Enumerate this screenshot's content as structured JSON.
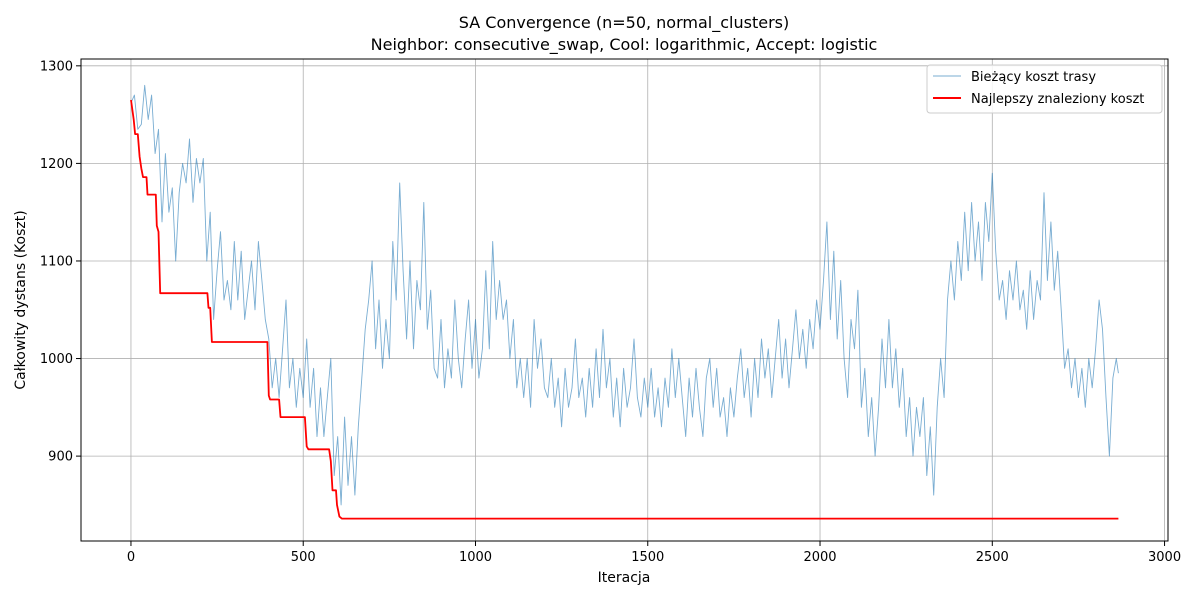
{
  "chart_data": {
    "type": "line",
    "title": "SA Convergence (n=50, normal_clusters)",
    "subtitle": "Neighbor: consecutive_swap, Cool: logarithmic, Accept: logistic",
    "xlabel": "Iteracja",
    "ylabel": "Całkowity dystans (Koszt)",
    "xlim": [
      -145,
      3010
    ],
    "ylim": [
      813,
      1307
    ],
    "xticks": [
      0,
      500,
      1000,
      1500,
      2000,
      2500,
      3000
    ],
    "yticks": [
      900,
      1000,
      1100,
      1200,
      1300
    ],
    "grid": true,
    "legend_position": "top-right",
    "series": [
      {
        "name": "Bieżący koszt trasy",
        "color": "#1f77b4",
        "style": "thin",
        "points": [
          [
            0,
            1262
          ],
          [
            10,
            1270
          ],
          [
            20,
            1235
          ],
          [
            30,
            1240
          ],
          [
            40,
            1280
          ],
          [
            50,
            1245
          ],
          [
            60,
            1270
          ],
          [
            70,
            1210
          ],
          [
            80,
            1235
          ],
          [
            90,
            1140
          ],
          [
            100,
            1210
          ],
          [
            110,
            1150
          ],
          [
            120,
            1175
          ],
          [
            130,
            1100
          ],
          [
            140,
            1170
          ],
          [
            150,
            1200
          ],
          [
            160,
            1180
          ],
          [
            170,
            1225
          ],
          [
            180,
            1160
          ],
          [
            190,
            1205
          ],
          [
            200,
            1180
          ],
          [
            210,
            1205
          ],
          [
            220,
            1100
          ],
          [
            230,
            1150
          ],
          [
            240,
            1040
          ],
          [
            250,
            1090
          ],
          [
            260,
            1130
          ],
          [
            270,
            1060
          ],
          [
            280,
            1080
          ],
          [
            290,
            1050
          ],
          [
            300,
            1120
          ],
          [
            310,
            1060
          ],
          [
            320,
            1110
          ],
          [
            330,
            1040
          ],
          [
            340,
            1070
          ],
          [
            350,
            1100
          ],
          [
            360,
            1050
          ],
          [
            370,
            1120
          ],
          [
            380,
            1080
          ],
          [
            390,
            1040
          ],
          [
            400,
            1020
          ],
          [
            410,
            970
          ],
          [
            420,
            1000
          ],
          [
            430,
            960
          ],
          [
            440,
            1010
          ],
          [
            450,
            1060
          ],
          [
            460,
            970
          ],
          [
            470,
            1000
          ],
          [
            480,
            950
          ],
          [
            490,
            990
          ],
          [
            500,
            960
          ],
          [
            510,
            1020
          ],
          [
            520,
            950
          ],
          [
            530,
            990
          ],
          [
            540,
            920
          ],
          [
            550,
            970
          ],
          [
            560,
            920
          ],
          [
            570,
            960
          ],
          [
            580,
            1000
          ],
          [
            590,
            880
          ],
          [
            600,
            920
          ],
          [
            610,
            850
          ],
          [
            620,
            940
          ],
          [
            630,
            870
          ],
          [
            640,
            920
          ],
          [
            650,
            860
          ],
          [
            660,
            930
          ],
          [
            670,
            980
          ],
          [
            680,
            1030
          ],
          [
            690,
            1060
          ],
          [
            700,
            1100
          ],
          [
            710,
            1010
          ],
          [
            720,
            1060
          ],
          [
            730,
            990
          ],
          [
            740,
            1040
          ],
          [
            750,
            1000
          ],
          [
            760,
            1120
          ],
          [
            770,
            1060
          ],
          [
            780,
            1180
          ],
          [
            790,
            1090
          ],
          [
            800,
            1020
          ],
          [
            810,
            1100
          ],
          [
            820,
            1010
          ],
          [
            830,
            1080
          ],
          [
            840,
            1050
          ],
          [
            850,
            1160
          ],
          [
            860,
            1030
          ],
          [
            870,
            1070
          ],
          [
            880,
            990
          ],
          [
            890,
            980
          ],
          [
            900,
            1040
          ],
          [
            910,
            970
          ],
          [
            920,
            1010
          ],
          [
            930,
            980
          ],
          [
            940,
            1060
          ],
          [
            950,
            1000
          ],
          [
            960,
            970
          ],
          [
            970,
            1020
          ],
          [
            980,
            1060
          ],
          [
            990,
            990
          ],
          [
            1000,
            1040
          ],
          [
            1010,
            980
          ],
          [
            1020,
            1010
          ],
          [
            1030,
            1090
          ],
          [
            1040,
            1010
          ],
          [
            1050,
            1120
          ],
          [
            1060,
            1040
          ],
          [
            1070,
            1080
          ],
          [
            1080,
            1040
          ],
          [
            1090,
            1060
          ],
          [
            1100,
            1000
          ],
          [
            1110,
            1040
          ],
          [
            1120,
            970
          ],
          [
            1130,
            1000
          ],
          [
            1140,
            960
          ],
          [
            1150,
            1000
          ],
          [
            1160,
            950
          ],
          [
            1170,
            1040
          ],
          [
            1180,
            990
          ],
          [
            1190,
            1020
          ],
          [
            1200,
            970
          ],
          [
            1210,
            960
          ],
          [
            1220,
            1000
          ],
          [
            1230,
            950
          ],
          [
            1240,
            980
          ],
          [
            1250,
            930
          ],
          [
            1260,
            990
          ],
          [
            1270,
            950
          ],
          [
            1280,
            970
          ],
          [
            1290,
            1020
          ],
          [
            1300,
            960
          ],
          [
            1310,
            980
          ],
          [
            1320,
            940
          ],
          [
            1330,
            990
          ],
          [
            1340,
            950
          ],
          [
            1350,
            1010
          ],
          [
            1360,
            960
          ],
          [
            1370,
            1030
          ],
          [
            1380,
            970
          ],
          [
            1390,
            1000
          ],
          [
            1400,
            940
          ],
          [
            1410,
            980
          ],
          [
            1420,
            930
          ],
          [
            1430,
            990
          ],
          [
            1440,
            950
          ],
          [
            1450,
            970
          ],
          [
            1460,
            1020
          ],
          [
            1470,
            960
          ],
          [
            1480,
            940
          ],
          [
            1490,
            980
          ],
          [
            1500,
            950
          ],
          [
            1510,
            990
          ],
          [
            1520,
            940
          ],
          [
            1530,
            970
          ],
          [
            1540,
            930
          ],
          [
            1550,
            980
          ],
          [
            1560,
            950
          ],
          [
            1570,
            1010
          ],
          [
            1580,
            960
          ],
          [
            1590,
            1000
          ],
          [
            1600,
            960
          ],
          [
            1610,
            920
          ],
          [
            1620,
            980
          ],
          [
            1630,
            940
          ],
          [
            1640,
            990
          ],
          [
            1650,
            950
          ],
          [
            1660,
            920
          ],
          [
            1670,
            980
          ],
          [
            1680,
            1000
          ],
          [
            1690,
            950
          ],
          [
            1700,
            990
          ],
          [
            1710,
            940
          ],
          [
            1720,
            960
          ],
          [
            1730,
            920
          ],
          [
            1740,
            970
          ],
          [
            1750,
            940
          ],
          [
            1760,
            980
          ],
          [
            1770,
            1010
          ],
          [
            1780,
            960
          ],
          [
            1790,
            990
          ],
          [
            1800,
            940
          ],
          [
            1810,
            1000
          ],
          [
            1820,
            960
          ],
          [
            1830,
            1020
          ],
          [
            1840,
            980
          ],
          [
            1850,
            1010
          ],
          [
            1860,
            960
          ],
          [
            1870,
            1000
          ],
          [
            1880,
            1040
          ],
          [
            1890,
            980
          ],
          [
            1900,
            1020
          ],
          [
            1910,
            970
          ],
          [
            1920,
            1010
          ],
          [
            1930,
            1050
          ],
          [
            1940,
            1000
          ],
          [
            1950,
            1030
          ],
          [
            1960,
            990
          ],
          [
            1970,
            1040
          ],
          [
            1980,
            1010
          ],
          [
            1990,
            1060
          ],
          [
            2000,
            1030
          ],
          [
            2010,
            1080
          ],
          [
            2020,
            1140
          ],
          [
            2030,
            1040
          ],
          [
            2040,
            1110
          ],
          [
            2050,
            1020
          ],
          [
            2060,
            1080
          ],
          [
            2070,
            1000
          ],
          [
            2080,
            960
          ],
          [
            2090,
            1040
          ],
          [
            2100,
            1010
          ],
          [
            2110,
            1070
          ],
          [
            2120,
            950
          ],
          [
            2130,
            990
          ],
          [
            2140,
            920
          ],
          [
            2150,
            960
          ],
          [
            2160,
            900
          ],
          [
            2170,
            950
          ],
          [
            2180,
            1020
          ],
          [
            2190,
            970
          ],
          [
            2200,
            1040
          ],
          [
            2210,
            970
          ],
          [
            2220,
            1010
          ],
          [
            2230,
            950
          ],
          [
            2240,
            990
          ],
          [
            2250,
            920
          ],
          [
            2260,
            960
          ],
          [
            2270,
            900
          ],
          [
            2280,
            950
          ],
          [
            2290,
            920
          ],
          [
            2300,
            960
          ],
          [
            2310,
            880
          ],
          [
            2320,
            930
          ],
          [
            2330,
            860
          ],
          [
            2340,
            950
          ],
          [
            2350,
            1000
          ],
          [
            2360,
            960
          ],
          [
            2370,
            1060
          ],
          [
            2380,
            1100
          ],
          [
            2390,
            1060
          ],
          [
            2400,
            1120
          ],
          [
            2410,
            1080
          ],
          [
            2420,
            1150
          ],
          [
            2430,
            1090
          ],
          [
            2440,
            1160
          ],
          [
            2450,
            1100
          ],
          [
            2460,
            1140
          ],
          [
            2470,
            1080
          ],
          [
            2480,
            1160
          ],
          [
            2490,
            1120
          ],
          [
            2500,
            1190
          ],
          [
            2510,
            1110
          ],
          [
            2520,
            1060
          ],
          [
            2530,
            1080
          ],
          [
            2540,
            1040
          ],
          [
            2550,
            1090
          ],
          [
            2560,
            1060
          ],
          [
            2570,
            1100
          ],
          [
            2580,
            1050
          ],
          [
            2590,
            1070
          ],
          [
            2600,
            1030
          ],
          [
            2610,
            1090
          ],
          [
            2620,
            1040
          ],
          [
            2630,
            1080
          ],
          [
            2640,
            1060
          ],
          [
            2650,
            1170
          ],
          [
            2660,
            1080
          ],
          [
            2670,
            1140
          ],
          [
            2680,
            1070
          ],
          [
            2690,
            1110
          ],
          [
            2700,
            1050
          ],
          [
            2710,
            990
          ],
          [
            2720,
            1010
          ],
          [
            2730,
            970
          ],
          [
            2740,
            1000
          ],
          [
            2750,
            960
          ],
          [
            2760,
            990
          ],
          [
            2770,
            950
          ],
          [
            2780,
            1000
          ],
          [
            2790,
            970
          ],
          [
            2800,
            1010
          ],
          [
            2810,
            1060
          ],
          [
            2820,
            1030
          ],
          [
            2830,
            960
          ],
          [
            2840,
            900
          ],
          [
            2850,
            980
          ],
          [
            2860,
            1000
          ],
          [
            2866,
            985
          ]
        ]
      },
      {
        "name": "Najlepszy znaleziony koszt",
        "color": "#ff0000",
        "style": "step",
        "points": [
          [
            0,
            1265
          ],
          [
            8,
            1245
          ],
          [
            12,
            1230
          ],
          [
            20,
            1230
          ],
          [
            25,
            1207
          ],
          [
            30,
            1195
          ],
          [
            35,
            1186
          ],
          [
            45,
            1186
          ],
          [
            48,
            1168
          ],
          [
            72,
            1168
          ],
          [
            75,
            1136
          ],
          [
            80,
            1130
          ],
          [
            85,
            1067
          ],
          [
            222,
            1067
          ],
          [
            225,
            1052
          ],
          [
            230,
            1052
          ],
          [
            235,
            1017
          ],
          [
            396,
            1017
          ],
          [
            400,
            962
          ],
          [
            404,
            958
          ],
          [
            430,
            958
          ],
          [
            434,
            940
          ],
          [
            505,
            940
          ],
          [
            510,
            910
          ],
          [
            515,
            907
          ],
          [
            575,
            907
          ],
          [
            580,
            895
          ],
          [
            585,
            865
          ],
          [
            595,
            865
          ],
          [
            598,
            850
          ],
          [
            605,
            838
          ],
          [
            612,
            836
          ],
          [
            2866,
            836
          ]
        ]
      }
    ]
  }
}
